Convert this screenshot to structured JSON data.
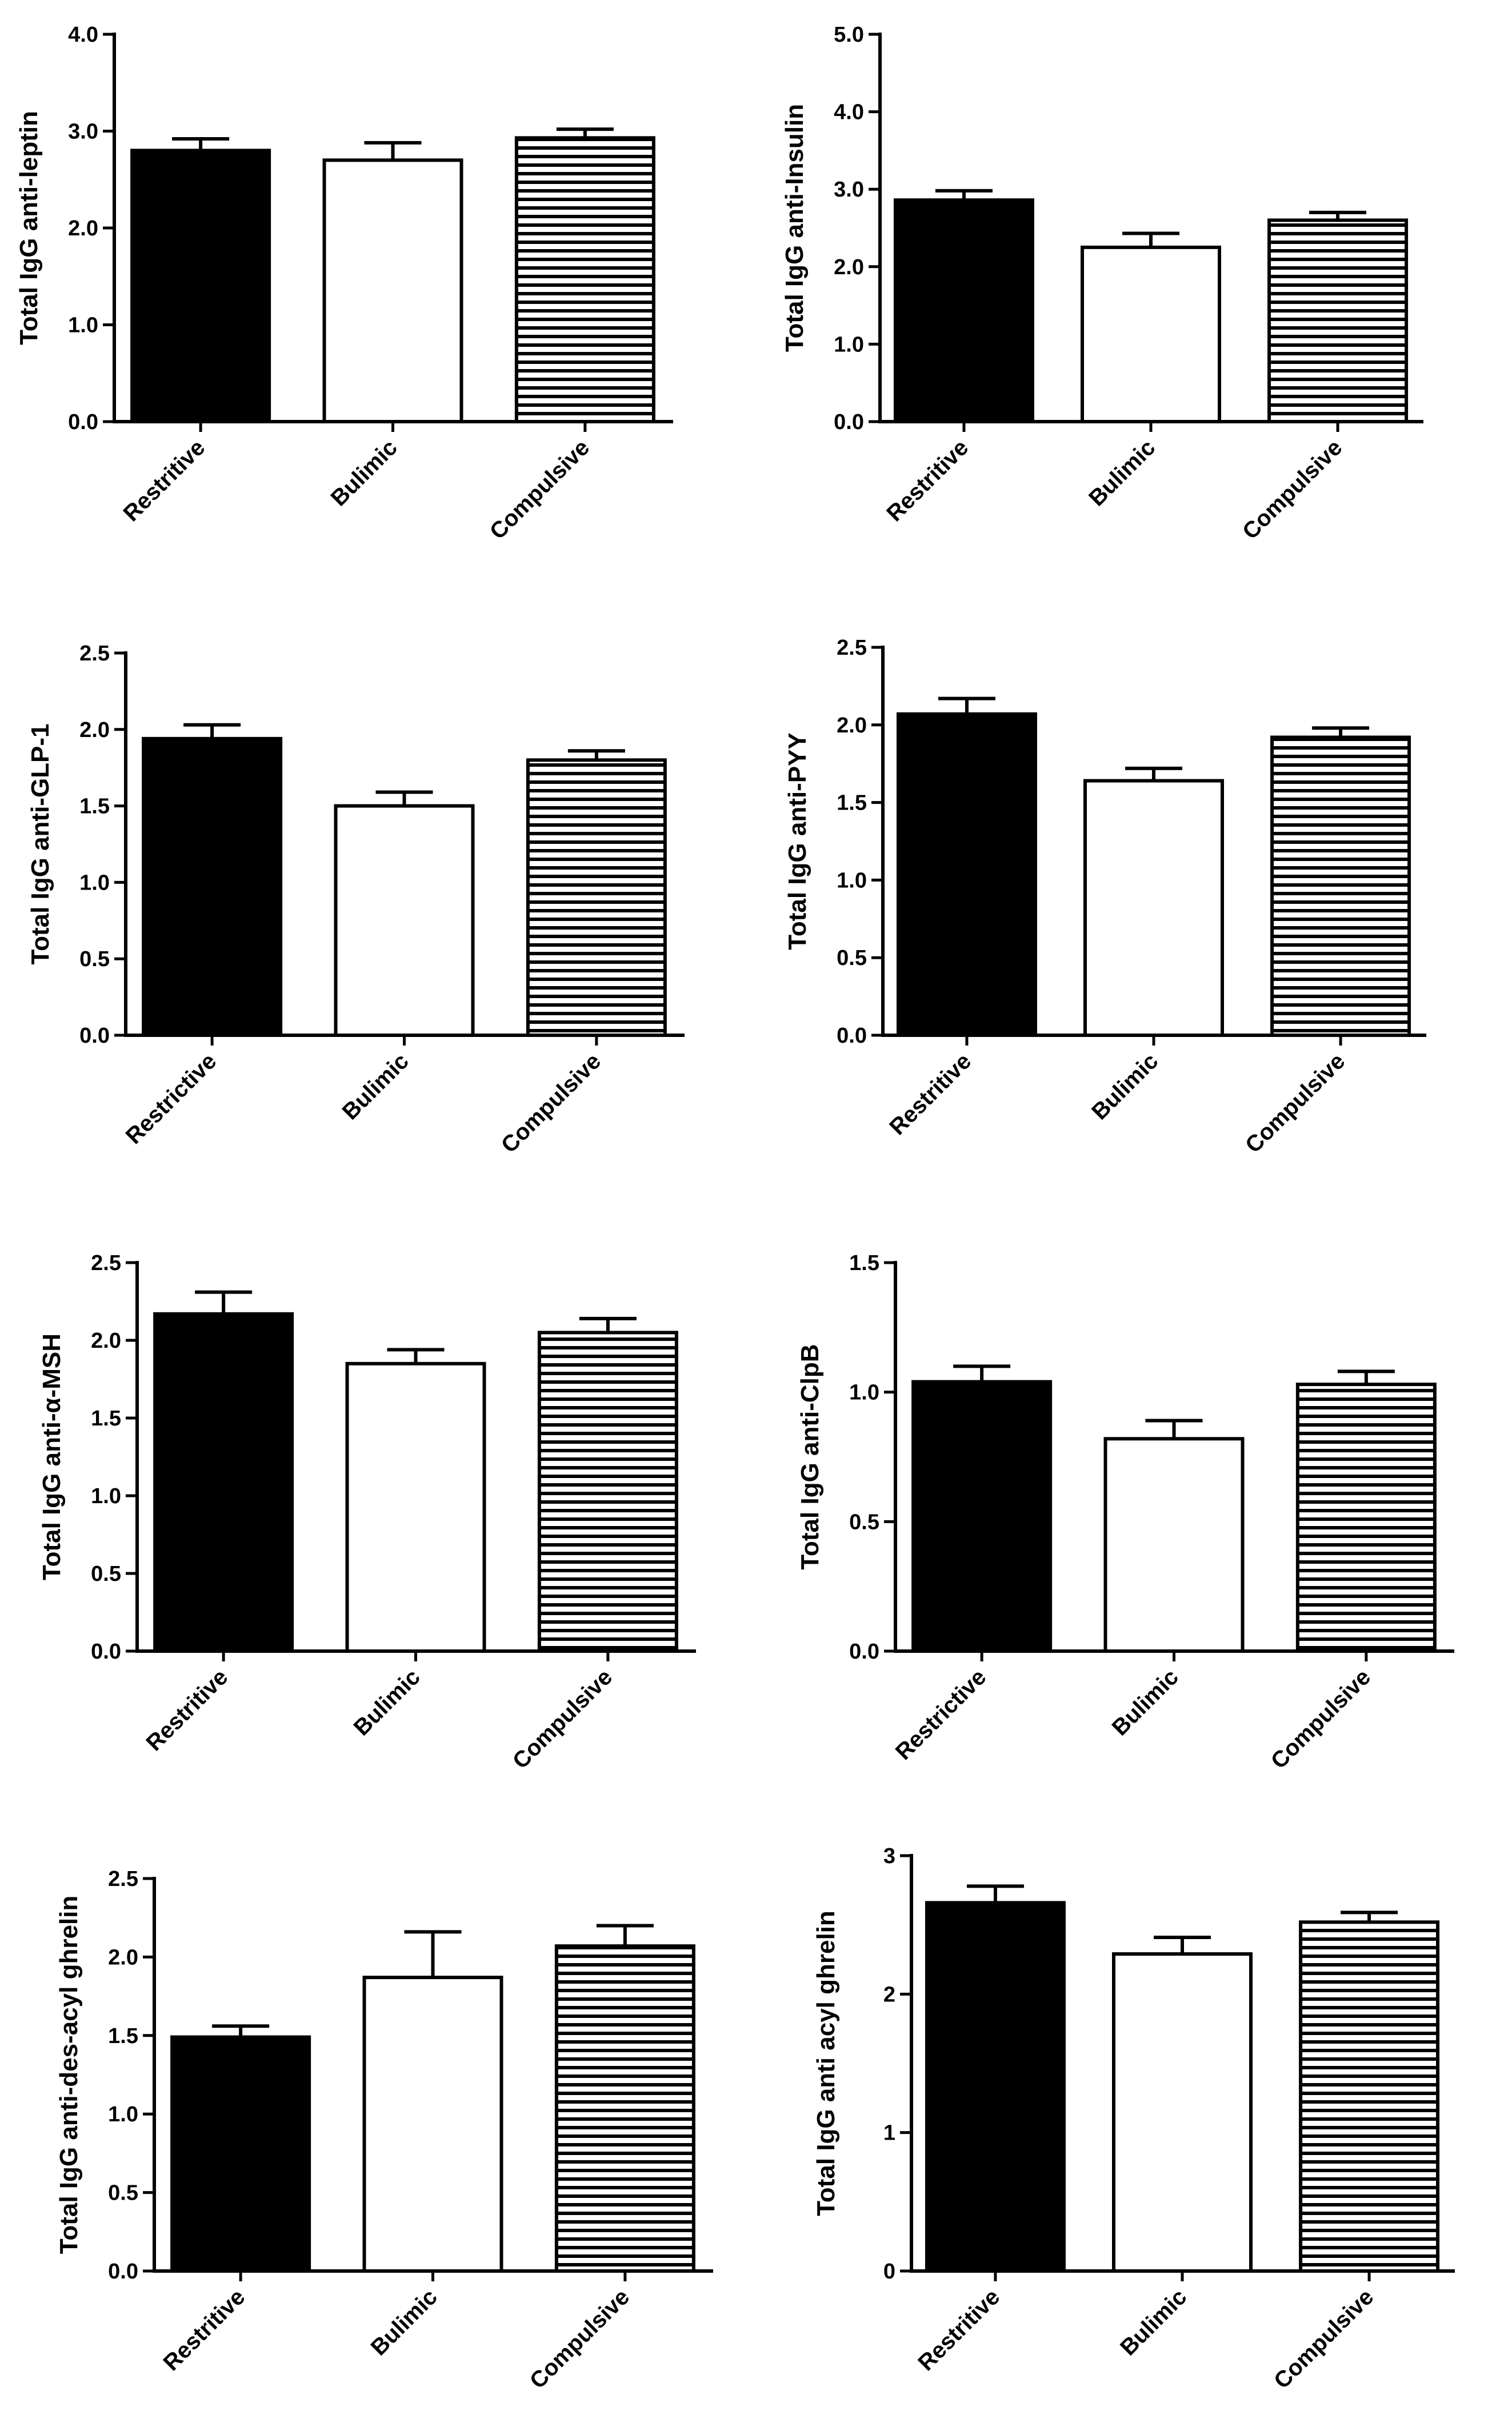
{
  "figure": {
    "description_free": true,
    "fills": {
      "Restritive": "#000000",
      "Bulimic": "#ffffff",
      "Compulsive": "hatch"
    },
    "colors": {
      "bar_black": "#000000",
      "bar_white": "#ffffff",
      "hatch_line": "#000000",
      "axis": "#000000"
    }
  },
  "chart_data": [
    {
      "type": "bar",
      "title": "",
      "ylabel": "Total IgG anti-leptin",
      "categories": [
        "Restritive",
        "Bulimic",
        "Compulsive"
      ],
      "values": [
        2.8,
        2.7,
        2.93
      ],
      "errors": [
        0.12,
        0.18,
        0.09
      ],
      "ylim": [
        0,
        4.0
      ],
      "yticks": [
        "0.0",
        "1.0",
        "2.0",
        "3.0",
        "4.0"
      ]
    },
    {
      "type": "bar",
      "title": "",
      "ylabel": "Total IgG anti-Insulin",
      "categories": [
        "Restritive",
        "Bulimic",
        "Compulsive"
      ],
      "values": [
        2.86,
        2.25,
        2.6
      ],
      "errors": [
        0.12,
        0.18,
        0.1
      ],
      "ylim": [
        0,
        5.0
      ],
      "yticks": [
        "0.0",
        "1.0",
        "2.0",
        "3.0",
        "4.0",
        "5.0"
      ]
    },
    {
      "type": "bar",
      "title": "",
      "ylabel": "Total IgG anti-GLP-1",
      "categories": [
        "Restrictive",
        "Bulimic",
        "Compulsive"
      ],
      "values": [
        1.94,
        1.5,
        1.8
      ],
      "errors": [
        0.09,
        0.09,
        0.06
      ],
      "ylim": [
        0,
        2.5
      ],
      "yticks": [
        "0.0",
        "0.5",
        "1.0",
        "1.5",
        "2.0",
        "2.5"
      ]
    },
    {
      "type": "bar",
      "title": "",
      "ylabel": "Total IgG anti-PYY",
      "categories": [
        "Restritive",
        "Bulimic",
        "Compulsive"
      ],
      "values": [
        2.07,
        1.64,
        1.92
      ],
      "errors": [
        0.1,
        0.08,
        0.06
      ],
      "ylim": [
        0,
        2.5
      ],
      "yticks": [
        "0.0",
        "0.5",
        "1.0",
        "1.5",
        "2.0",
        "2.5"
      ]
    },
    {
      "type": "bar",
      "title": "",
      "ylabel": "Total IgG anti-α-MSH",
      "categories": [
        "Restritive",
        "Bulimic",
        "Compulsive"
      ],
      "values": [
        2.17,
        1.85,
        2.05
      ],
      "errors": [
        0.14,
        0.09,
        0.09
      ],
      "ylim": [
        0,
        2.5
      ],
      "yticks": [
        "0.0",
        "0.5",
        "1.0",
        "1.5",
        "2.0",
        "2.5"
      ]
    },
    {
      "type": "bar",
      "title": "",
      "ylabel": "Total IgG anti-ClpB",
      "categories": [
        "Restrictive",
        "Bulimic",
        "Compulsive"
      ],
      "values": [
        1.04,
        0.82,
        1.03
      ],
      "errors": [
        0.06,
        0.07,
        0.05
      ],
      "ylim": [
        0,
        1.5
      ],
      "yticks": [
        "0.0",
        "0.5",
        "1.0",
        "1.5"
      ]
    },
    {
      "type": "bar",
      "title": "",
      "ylabel": "Total IgG anti-des-acyl ghrelin",
      "categories": [
        "Restritive",
        "Bulimic",
        "Compulsive"
      ],
      "values": [
        1.49,
        1.87,
        2.07
      ],
      "errors": [
        0.07,
        0.29,
        0.13
      ],
      "ylim": [
        0,
        2.5
      ],
      "yticks": [
        "0.0",
        "0.5",
        "1.0",
        "1.5",
        "2.0",
        "2.5"
      ]
    },
    {
      "type": "bar",
      "title": "",
      "ylabel": "Total IgG anti acyl ghrelin",
      "categories": [
        "Restritive",
        "Bulimic",
        "Compulsive"
      ],
      "values": [
        2.66,
        2.29,
        2.52
      ],
      "errors": [
        0.12,
        0.12,
        0.07
      ],
      "ylim": [
        0,
        3
      ],
      "yticks": [
        "0",
        "1",
        "2",
        "3"
      ]
    }
  ]
}
